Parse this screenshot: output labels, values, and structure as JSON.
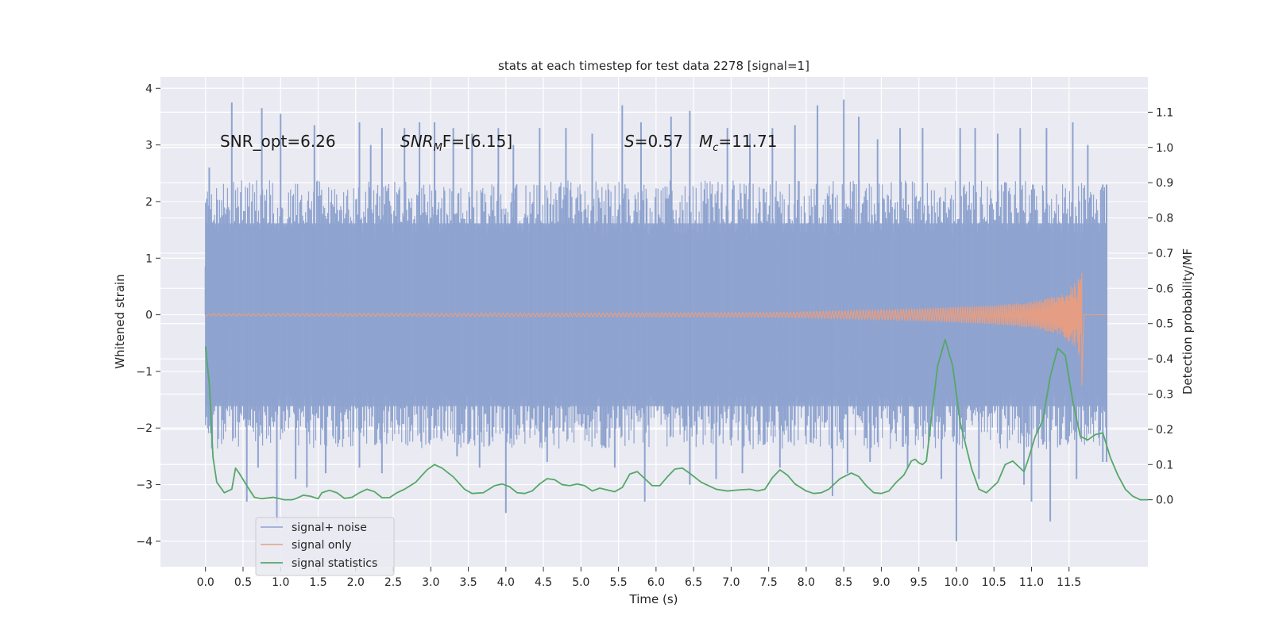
{
  "chart_data": {
    "type": "line",
    "title": "stats at each timestep for test data 2278 [signal=1]",
    "xlabel": "Time (s)",
    "ylabel_left": "Whitened strain",
    "ylabel_right": "Detection probability/MF",
    "xlim": [
      -0.6,
      12.55
    ],
    "ylim_left": [
      -4.45,
      4.2
    ],
    "ylim_right": [
      -0.19,
      1.2
    ],
    "x_ticks": [
      "0.0",
      "0.5",
      "1.0",
      "1.5",
      "2.0",
      "2.5",
      "3.0",
      "3.5",
      "4.0",
      "4.5",
      "5.0",
      "5.5",
      "6.0",
      "6.5",
      "7.0",
      "7.5",
      "8.0",
      "8.5",
      "9.0",
      "9.5",
      "10.0",
      "10.5",
      "11.0",
      "11.5"
    ],
    "y_ticks_left": [
      "4",
      "3",
      "2",
      "1",
      "0",
      "−1",
      "−2",
      "−3",
      "−4"
    ],
    "y_ticks_right": [
      "1.1",
      "1.0",
      "0.9",
      "0.8",
      "0.7",
      "0.6",
      "0.5",
      "0.4",
      "0.3",
      "0.2",
      "0.1",
      "0.0"
    ],
    "grid": true,
    "legend_position": "lower-left",
    "annotations": {
      "snr_opt": "SNR_opt=6.26",
      "snr_mf_main": "SNR",
      "snr_mf_sub": "M",
      "snr_mf_rest": "F=[6.15]",
      "s_italic": "S",
      "s_rest": "=0.57",
      "mc_italic": "M",
      "mc_sub": "c",
      "mc_rest": "=11.71"
    },
    "series": [
      {
        "name": "signal+ noise",
        "color": "#8ea3cf",
        "axis": "left",
        "x_range": [
          0.0,
          12.0
        ],
        "envelope_upper_typical": 1.9,
        "envelope_lower_typical": -1.9,
        "peaks_up": [
          [
            0.0,
            0.85
          ],
          [
            0.05,
            2.6
          ],
          [
            0.35,
            3.75
          ],
          [
            0.75,
            3.65
          ],
          [
            1.0,
            3.55
          ],
          [
            1.45,
            3.35
          ],
          [
            2.05,
            3.4
          ],
          [
            2.2,
            3.0
          ],
          [
            2.35,
            3.3
          ],
          [
            2.65,
            3.3
          ],
          [
            2.85,
            3.4
          ],
          [
            3.05,
            3.4
          ],
          [
            3.3,
            3.3
          ],
          [
            3.55,
            3.2
          ],
          [
            3.9,
            3.3
          ],
          [
            4.1,
            3.0
          ],
          [
            4.45,
            3.3
          ],
          [
            4.8,
            3.3
          ],
          [
            5.15,
            3.2
          ],
          [
            5.55,
            3.7
          ],
          [
            5.8,
            3.4
          ],
          [
            6.2,
            3.5
          ],
          [
            6.45,
            3.6
          ],
          [
            6.95,
            3.3
          ],
          [
            7.25,
            3.2
          ],
          [
            7.55,
            3.3
          ],
          [
            7.85,
            3.35
          ],
          [
            8.15,
            3.7
          ],
          [
            8.5,
            3.8
          ],
          [
            8.7,
            3.5
          ],
          [
            8.95,
            3.1
          ],
          [
            9.25,
            3.3
          ],
          [
            9.55,
            3.3
          ],
          [
            10.05,
            3.3
          ],
          [
            10.25,
            3.3
          ],
          [
            10.55,
            3.2
          ],
          [
            10.85,
            3.3
          ],
          [
            11.2,
            3.3
          ],
          [
            11.55,
            3.4
          ],
          [
            11.75,
            3.0
          ],
          [
            11.95,
            2.3
          ],
          [
            12.0,
            2.3
          ]
        ],
        "peaks_down": [
          [
            0.05,
            -1.45
          ],
          [
            0.55,
            -3.3
          ],
          [
            0.7,
            -2.7
          ],
          [
            0.95,
            -3.65
          ],
          [
            1.2,
            -2.9
          ],
          [
            1.35,
            -3.05
          ],
          [
            1.6,
            -2.8
          ],
          [
            2.05,
            -2.7
          ],
          [
            2.35,
            -2.8
          ],
          [
            3.35,
            -2.5
          ],
          [
            3.65,
            -2.7
          ],
          [
            4.0,
            -3.5
          ],
          [
            4.55,
            -2.6
          ],
          [
            5.45,
            -2.7
          ],
          [
            5.85,
            -3.3
          ],
          [
            6.45,
            -3.0
          ],
          [
            6.8,
            -2.9
          ],
          [
            7.15,
            -2.8
          ],
          [
            7.65,
            -2.7
          ],
          [
            8.35,
            -3.2
          ],
          [
            8.55,
            -2.8
          ],
          [
            8.85,
            -2.6
          ],
          [
            9.35,
            -2.7
          ],
          [
            9.8,
            -2.9
          ],
          [
            10.0,
            -4.0
          ],
          [
            10.3,
            -2.9
          ],
          [
            10.9,
            -3.0
          ],
          [
            11.0,
            -3.3
          ],
          [
            11.25,
            -3.65
          ],
          [
            11.6,
            -2.9
          ],
          [
            11.95,
            -2.6
          ],
          [
            12.0,
            -2.6
          ]
        ]
      },
      {
        "name": "signal only",
        "color": "#e59e84",
        "axis": "left",
        "x_range": [
          0.0,
          12.0
        ],
        "merger_time": 11.67,
        "amplitude_points": [
          [
            0.0,
            0.02
          ],
          [
            7.5,
            0.04
          ],
          [
            8.5,
            0.07
          ],
          [
            9.5,
            0.11
          ],
          [
            10.5,
            0.17
          ],
          [
            11.0,
            0.23
          ],
          [
            11.4,
            0.35
          ],
          [
            11.6,
            0.6
          ],
          [
            11.67,
            0.9
          ]
        ],
        "min_at_merger": -1.25,
        "post_merger_value": 0.0
      },
      {
        "name": "signal statistics",
        "color": "#55a868",
        "axis": "right",
        "points": [
          [
            0.0,
            0.435
          ],
          [
            0.05,
            0.33
          ],
          [
            0.1,
            0.12
          ],
          [
            0.15,
            0.05
          ],
          [
            0.25,
            0.02
          ],
          [
            0.35,
            0.03
          ],
          [
            0.4,
            0.09
          ],
          [
            0.45,
            0.075
          ],
          [
            0.55,
            0.04
          ],
          [
            0.65,
            0.007
          ],
          [
            0.75,
            0.003
          ],
          [
            0.9,
            0.007
          ],
          [
            1.05,
            0.0
          ],
          [
            1.15,
            0.0
          ],
          [
            1.2,
            0.003
          ],
          [
            1.3,
            0.013
          ],
          [
            1.4,
            0.01
          ],
          [
            1.5,
            0.003
          ],
          [
            1.55,
            0.02
          ],
          [
            1.65,
            0.027
          ],
          [
            1.75,
            0.02
          ],
          [
            1.85,
            0.004
          ],
          [
            1.95,
            0.007
          ],
          [
            2.05,
            0.02
          ],
          [
            2.15,
            0.03
          ],
          [
            2.25,
            0.023
          ],
          [
            2.35,
            0.006
          ],
          [
            2.45,
            0.006
          ],
          [
            2.55,
            0.02
          ],
          [
            2.65,
            0.03
          ],
          [
            2.8,
            0.05
          ],
          [
            2.95,
            0.085
          ],
          [
            3.05,
            0.1
          ],
          [
            3.15,
            0.09
          ],
          [
            3.3,
            0.065
          ],
          [
            3.45,
            0.03
          ],
          [
            3.55,
            0.018
          ],
          [
            3.7,
            0.02
          ],
          [
            3.85,
            0.04
          ],
          [
            3.95,
            0.045
          ],
          [
            4.05,
            0.037
          ],
          [
            4.15,
            0.02
          ],
          [
            4.25,
            0.018
          ],
          [
            4.35,
            0.025
          ],
          [
            4.45,
            0.045
          ],
          [
            4.55,
            0.06
          ],
          [
            4.65,
            0.057
          ],
          [
            4.75,
            0.043
          ],
          [
            4.85,
            0.04
          ],
          [
            4.95,
            0.045
          ],
          [
            5.05,
            0.04
          ],
          [
            5.15,
            0.025
          ],
          [
            5.25,
            0.033
          ],
          [
            5.35,
            0.028
          ],
          [
            5.45,
            0.023
          ],
          [
            5.55,
            0.035
          ],
          [
            5.65,
            0.073
          ],
          [
            5.75,
            0.08
          ],
          [
            5.85,
            0.06
          ],
          [
            5.95,
            0.04
          ],
          [
            6.05,
            0.04
          ],
          [
            6.15,
            0.065
          ],
          [
            6.25,
            0.087
          ],
          [
            6.35,
            0.09
          ],
          [
            6.45,
            0.075
          ],
          [
            6.6,
            0.05
          ],
          [
            6.8,
            0.03
          ],
          [
            6.95,
            0.025
          ],
          [
            7.1,
            0.028
          ],
          [
            7.25,
            0.03
          ],
          [
            7.35,
            0.025
          ],
          [
            7.45,
            0.03
          ],
          [
            7.55,
            0.063
          ],
          [
            7.65,
            0.085
          ],
          [
            7.75,
            0.07
          ],
          [
            7.85,
            0.045
          ],
          [
            8.0,
            0.025
          ],
          [
            8.1,
            0.018
          ],
          [
            8.2,
            0.02
          ],
          [
            8.3,
            0.03
          ],
          [
            8.45,
            0.06
          ],
          [
            8.6,
            0.076
          ],
          [
            8.7,
            0.066
          ],
          [
            8.8,
            0.04
          ],
          [
            8.9,
            0.02
          ],
          [
            9.0,
            0.018
          ],
          [
            9.1,
            0.025
          ],
          [
            9.2,
            0.05
          ],
          [
            9.3,
            0.07
          ],
          [
            9.4,
            0.11
          ],
          [
            9.45,
            0.115
          ],
          [
            9.5,
            0.105
          ],
          [
            9.55,
            0.1
          ],
          [
            9.6,
            0.11
          ],
          [
            9.65,
            0.2
          ],
          [
            9.75,
            0.38
          ],
          [
            9.85,
            0.455
          ],
          [
            9.95,
            0.38
          ],
          [
            10.05,
            0.22
          ],
          [
            10.2,
            0.09
          ],
          [
            10.3,
            0.03
          ],
          [
            10.4,
            0.02
          ],
          [
            10.45,
            0.03
          ],
          [
            10.55,
            0.05
          ],
          [
            10.65,
            0.1
          ],
          [
            10.75,
            0.11
          ],
          [
            10.8,
            0.1
          ],
          [
            10.9,
            0.08
          ],
          [
            10.95,
            0.11
          ],
          [
            11.05,
            0.18
          ],
          [
            11.15,
            0.225
          ],
          [
            11.25,
            0.35
          ],
          [
            11.35,
            0.43
          ],
          [
            11.45,
            0.41
          ],
          [
            11.55,
            0.28
          ],
          [
            11.65,
            0.18
          ],
          [
            11.75,
            0.17
          ],
          [
            11.85,
            0.185
          ],
          [
            11.95,
            0.19
          ],
          [
            12.05,
            0.12
          ],
          [
            12.15,
            0.07
          ],
          [
            12.25,
            0.03
          ],
          [
            12.35,
            0.01
          ],
          [
            12.45,
            0.0
          ],
          [
            12.55,
            0.0
          ]
        ]
      }
    ]
  }
}
